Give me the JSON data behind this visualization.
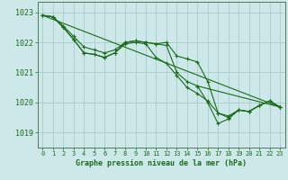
{
  "background_color": "#cce8e8",
  "grid_color": "#aacccc",
  "line_color": "#1a6b1a",
  "title": "Graphe pression niveau de la mer (hPa)",
  "xlim": [
    -0.5,
    23.5
  ],
  "ylim": [
    1018.5,
    1023.35
  ],
  "yticks": [
    1019,
    1020,
    1021,
    1022,
    1023
  ],
  "xticks": [
    0,
    1,
    2,
    3,
    4,
    5,
    6,
    7,
    8,
    9,
    10,
    11,
    12,
    13,
    14,
    15,
    16,
    17,
    18,
    19,
    20,
    21,
    22,
    23
  ],
  "series": [
    {
      "x": [
        0,
        1,
        2,
        3,
        4,
        5,
        6,
        7,
        8,
        9,
        10,
        11,
        12,
        13,
        14,
        15,
        16,
        17,
        18,
        19,
        20,
        21,
        22,
        23
      ],
      "y": [
        1022.9,
        1022.85,
        1022.55,
        1022.2,
        1021.85,
        1021.75,
        1021.65,
        1021.75,
        1022.0,
        1022.05,
        1022.0,
        1021.95,
        1022.0,
        1021.55,
        1021.45,
        1021.35,
        1020.7,
        1019.65,
        1019.5,
        1019.75,
        1019.7,
        1019.9,
        1020.05,
        1019.85
      ]
    },
    {
      "x": [
        0,
        1,
        2,
        3,
        4,
        5,
        6,
        7,
        8,
        9,
        10,
        11,
        12,
        13,
        14,
        15,
        16,
        17,
        18,
        19,
        20,
        21,
        22,
        23
      ],
      "y": [
        1022.9,
        1022.85,
        1022.5,
        1022.1,
        1021.65,
        1021.6,
        1021.5,
        1021.65,
        1021.95,
        1022.0,
        1021.95,
        1021.5,
        1021.3,
        1020.9,
        1020.5,
        1020.3,
        1020.05,
        1019.65,
        1019.55,
        1019.75,
        1019.7,
        1019.9,
        1020.05,
        1019.85
      ]
    },
    {
      "x": [
        0,
        1,
        2,
        3,
        4,
        5,
        6,
        7,
        8,
        9,
        10,
        11,
        12,
        13,
        14,
        15,
        23
      ],
      "y": [
        1022.9,
        1022.85,
        1022.5,
        1022.1,
        1021.65,
        1021.6,
        1021.5,
        1021.65,
        1022.0,
        1022.05,
        1022.0,
        1021.95,
        1021.9,
        1021.0,
        1020.7,
        1020.55,
        1019.85
      ]
    },
    {
      "x": [
        15,
        16,
        17,
        18,
        19,
        20,
        21,
        22,
        23
      ],
      "y": [
        1020.55,
        1020.0,
        1019.3,
        1019.45,
        1019.75,
        1019.7,
        1019.9,
        1020.05,
        1019.85
      ]
    }
  ],
  "straight_line": {
    "x": [
      0,
      23
    ],
    "y": [
      1022.9,
      1019.85
    ]
  }
}
